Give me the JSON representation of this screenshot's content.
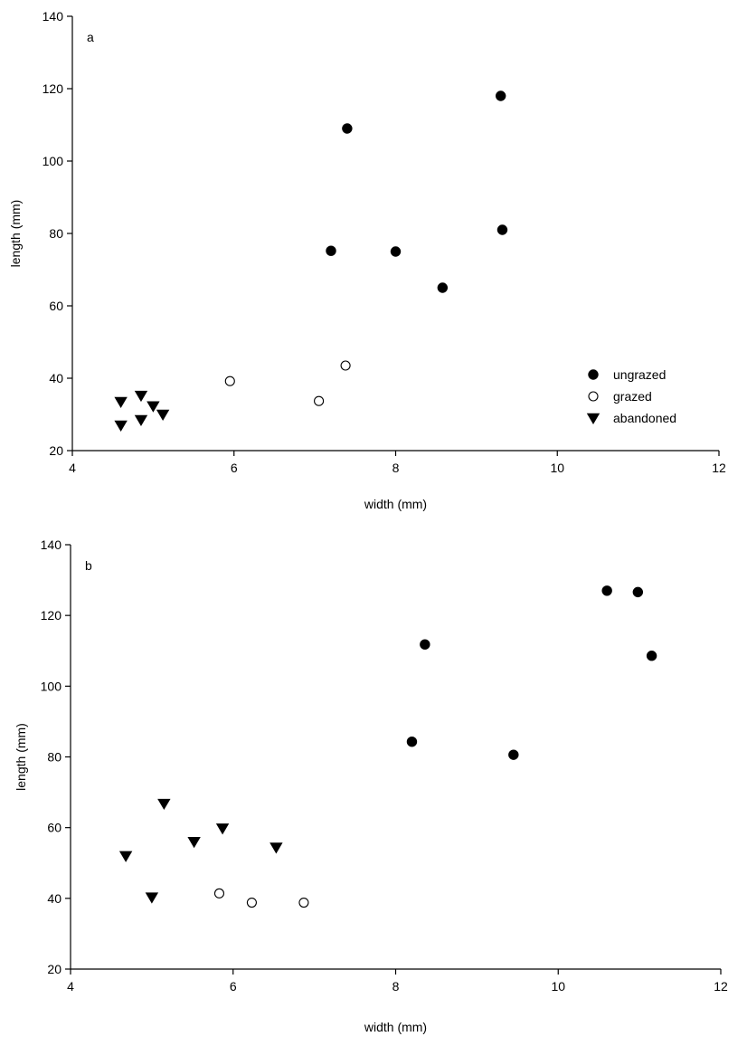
{
  "chart_data": [
    {
      "type": "scatter",
      "panel_label": "a",
      "xlabel": "width (mm)",
      "ylabel": "length (mm)",
      "xlim": [
        4,
        12
      ],
      "ylim": [
        20,
        140
      ],
      "xticks": [
        "4",
        "6",
        "8",
        "10",
        "12"
      ],
      "yticks": [
        "20",
        "40",
        "60",
        "80",
        "100",
        "120",
        "140"
      ],
      "grid": false,
      "legend_position": "bottom-right",
      "series": [
        {
          "name": "ungrazed",
          "marker": "filled-circle",
          "x": [
            7.2,
            7.4,
            8.0,
            8.58,
            9.3,
            9.32
          ],
          "y": [
            75.2,
            109.0,
            75.0,
            65.0,
            118.0,
            81.0
          ]
        },
        {
          "name": "grazed",
          "marker": "open-circle",
          "x": [
            5.95,
            7.05,
            7.38
          ],
          "y": [
            39.2,
            33.7,
            43.5
          ]
        },
        {
          "name": "abandoned",
          "marker": "filled-triangle-down",
          "x": [
            4.6,
            4.6,
            4.85,
            4.85,
            5.0,
            5.12
          ],
          "y": [
            33.5,
            27.0,
            35.2,
            28.5,
            32.3,
            30.0
          ]
        }
      ]
    },
    {
      "type": "scatter",
      "panel_label": "b",
      "xlabel": "width (mm)",
      "ylabel": "length (mm)",
      "xlim": [
        4,
        12
      ],
      "ylim": [
        20,
        140
      ],
      "xticks": [
        "4",
        "6",
        "8",
        "10",
        "12"
      ],
      "yticks": [
        "20",
        "40",
        "60",
        "80",
        "100",
        "120",
        "140"
      ],
      "grid": false,
      "series": [
        {
          "name": "ungrazed",
          "marker": "filled-circle",
          "x": [
            8.2,
            8.36,
            9.45,
            10.6,
            10.98,
            11.15
          ],
          "y": [
            84.3,
            111.8,
            80.6,
            127.0,
            126.6,
            108.6
          ]
        },
        {
          "name": "grazed",
          "marker": "open-circle",
          "x": [
            5.83,
            6.23,
            6.87
          ],
          "y": [
            41.4,
            38.8,
            38.8
          ]
        },
        {
          "name": "abandoned",
          "marker": "filled-triangle-down",
          "x": [
            4.68,
            5.0,
            5.15,
            5.52,
            5.87,
            6.53
          ],
          "y": [
            52.0,
            40.3,
            66.8,
            56.0,
            59.8,
            54.4
          ]
        }
      ]
    }
  ]
}
